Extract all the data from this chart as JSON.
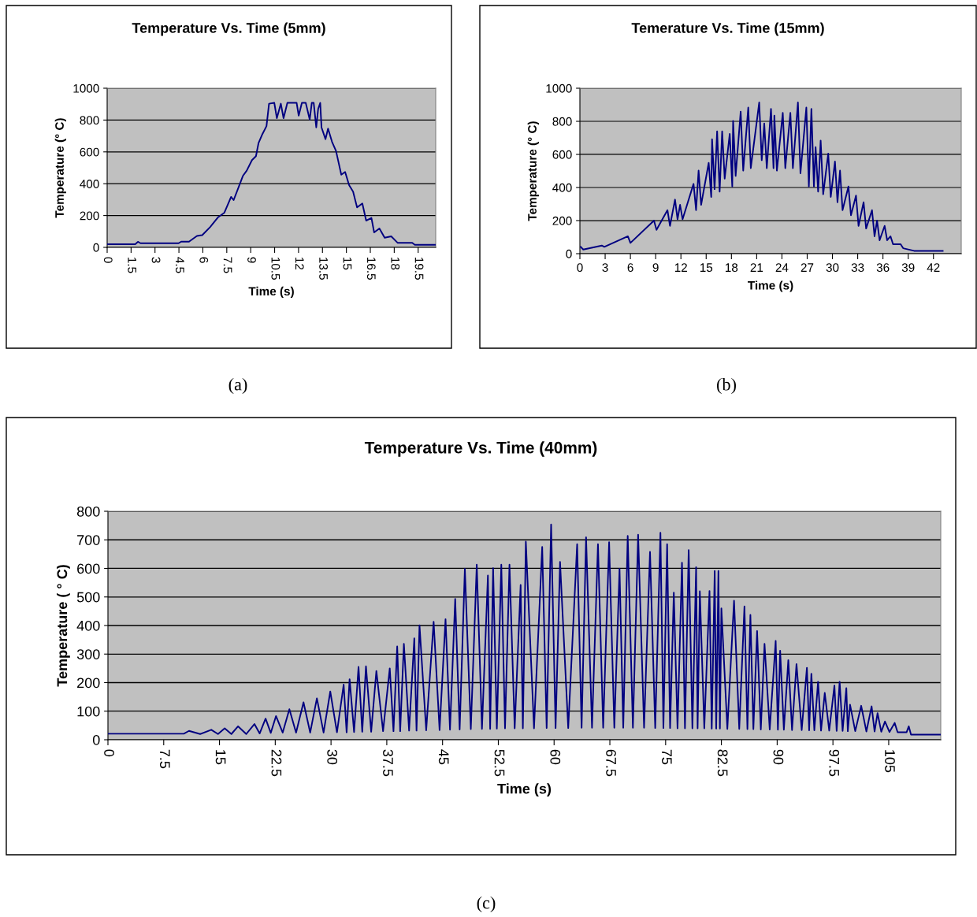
{
  "chart_data": [
    {
      "type": "line",
      "title": "Temperature Vs. Time (5mm)",
      "xlabel": "Time (s)",
      "ylabel": "Temperature (° C)",
      "xlim": [
        0,
        20.6
      ],
      "ylim": [
        0,
        1000
      ],
      "xticks": [
        0,
        1.5,
        3,
        4.5,
        6,
        7.5,
        9,
        10.5,
        12,
        13.5,
        15,
        16.5,
        18,
        19.5
      ],
      "yticks": [
        0,
        200,
        400,
        600,
        800,
        1000
      ],
      "grid": "y",
      "annotations": [
        "(a)"
      ],
      "series": [
        {
          "color": "#000080",
          "x": [
            0,
            1.76,
            1.93,
            2.09,
            4.48,
            4.64,
            5.13,
            5.63,
            5.96,
            6.45,
            6.94,
            7.35,
            7.77,
            7.93,
            8.26,
            8.51,
            8.75,
            9.08,
            9.33,
            9.49,
            9.74,
            9.99,
            10.15,
            10.48,
            10.64,
            10.89,
            11.06,
            11.3,
            11.88,
            12.01,
            12.21,
            12.45,
            12.7,
            12.83,
            12.95,
            13.11,
            13.23,
            13.36,
            13.44,
            13.69,
            13.85,
            14.1,
            14.35,
            14.68,
            14.92,
            15.17,
            15.42,
            15.67,
            16.0,
            16.24,
            16.57,
            16.74,
            17.07,
            17.4,
            17.81,
            18.22,
            19.13,
            19.29,
            20.6
          ],
          "values": [
            20,
            20,
            35,
            26,
            26,
            36,
            36,
            72,
            77,
            127,
            188,
            218,
            317,
            297,
            383,
            449,
            482,
            548,
            573,
            655,
            713,
            762,
            903,
            908,
            812,
            903,
            812,
            908,
            908,
            828,
            908,
            908,
            803,
            908,
            908,
            754,
            870,
            908,
            754,
            680,
            746,
            663,
            606,
            457,
            474,
            391,
            350,
            251,
            276,
            168,
            185,
            94,
            119,
            61,
            69,
            28,
            28,
            16,
            16
          ]
        }
      ]
    },
    {
      "type": "line",
      "title": "Temerature Vs. Time (15mm)",
      "xlabel": "Time (s)",
      "ylabel": "Temperature (° C)",
      "xlim": [
        0,
        45.3
      ],
      "ylim": [
        0,
        1000
      ],
      "xticks": [
        0,
        3,
        6,
        9,
        12,
        15,
        18,
        21,
        24,
        27,
        30,
        33,
        36,
        39,
        42
      ],
      "yticks": [
        0,
        200,
        400,
        600,
        800,
        1000
      ],
      "grid": "y",
      "annotations": [
        "(b)"
      ],
      "series": [
        {
          "color": "#000080",
          "x": [
            0.1,
            0.4,
            2.6,
            2.9,
            5.7,
            6.0,
            8.8,
            9.1,
            10.4,
            10.7,
            11.3,
            11.6,
            11.9,
            12.2,
            13.5,
            13.8,
            14.1,
            14.4,
            15.3,
            15.6,
            15.7,
            16.0,
            16.3,
            16.6,
            16.9,
            17.2,
            17.8,
            18.1,
            18.2,
            18.5,
            19.1,
            19.4,
            20.0,
            20.3,
            21.3,
            21.6,
            21.9,
            22.2,
            22.7,
            23.0,
            23.1,
            23.4,
            24.1,
            24.4,
            25.0,
            25.3,
            25.9,
            26.2,
            26.9,
            27.2,
            27.5,
            27.8,
            28.0,
            28.3,
            28.6,
            28.9,
            29.5,
            29.8,
            30.3,
            30.6,
            30.9,
            31.2,
            31.9,
            32.2,
            32.8,
            33.1,
            33.7,
            34.0,
            34.7,
            35.0,
            35.3,
            35.6,
            36.2,
            36.5,
            36.9,
            37.2,
            38.1,
            38.4,
            39.7,
            43.1
          ],
          "values": [
            41,
            25,
            49,
            41,
            105,
            65,
            200,
            144,
            263,
            168,
            327,
            208,
            295,
            208,
            422,
            263,
            502,
            295,
            549,
            343,
            692,
            390,
            740,
            375,
            740,
            454,
            724,
            406,
            803,
            470,
            859,
            502,
            883,
            517,
            914,
            565,
            787,
            517,
            875,
            517,
            835,
            502,
            851,
            517,
            851,
            517,
            914,
            486,
            883,
            406,
            875,
            406,
            644,
            375,
            684,
            359,
            605,
            343,
            557,
            311,
            502,
            263,
            406,
            232,
            351,
            168,
            311,
            152,
            263,
            105,
            200,
            81,
            168,
            81,
            105,
            57,
            57,
            33,
            17,
            17
          ]
        }
      ]
    },
    {
      "type": "line",
      "title": "Temperature Vs. Time (40mm)",
      "xlabel": "Time (s)",
      "ylabel": "Temperature ( ° C)",
      "xlim": [
        0,
        112
      ],
      "ylim": [
        0,
        800
      ],
      "xticks": [
        0,
        7.5,
        15,
        22.5,
        30,
        37.5,
        45,
        52.5,
        60,
        67.5,
        75,
        82.5,
        90,
        97.5,
        105
      ],
      "yticks": [
        0,
        100,
        200,
        300,
        400,
        500,
        600,
        700,
        800
      ],
      "grid": "y",
      "annotations": [
        "(c)"
      ],
      "series": [
        {
          "color": "#000080",
          "x": [
            0,
            10.2,
            10.9,
            12.4,
            13.9,
            14.8,
            15.7,
            16.6,
            17.5,
            18.6,
            19.7,
            20.4,
            21.2,
            21.9,
            22.6,
            23.5,
            24.4,
            25.3,
            26.3,
            27.2,
            28.1,
            29.0,
            29.9,
            30.8,
            31.7,
            32.1,
            32.5,
            33.1,
            33.7,
            34.2,
            34.7,
            35.4,
            36.1,
            37.0,
            37.9,
            38.4,
            38.9,
            39.3,
            39.8,
            40.5,
            41.2,
            41.5,
            41.9,
            42.8,
            43.8,
            44.6,
            45.4,
            46.0,
            46.7,
            47.3,
            48.0,
            48.8,
            49.6,
            50.3,
            51.1,
            51.4,
            51.8,
            52.3,
            52.9,
            53.4,
            54.0,
            54.7,
            55.5,
            55.8,
            56.2,
            57.3,
            58.4,
            59.0,
            59.6,
            60.2,
            60.8,
            61.9,
            63.1,
            63.7,
            64.3,
            65.1,
            65.9,
            66.6,
            67.4,
            68.1,
            68.8,
            69.3,
            69.9,
            70.6,
            71.3,
            72.1,
            72.9,
            73.6,
            74.3,
            74.7,
            75.2,
            75.6,
            76.1,
            76.6,
            77.2,
            77.6,
            78.1,
            78.6,
            79.1,
            79.3,
            79.6,
            80.2,
            80.9,
            81.2,
            81.6,
            81.8,
            82.1,
            82.3,
            82.5,
            83.3,
            84.2,
            84.9,
            85.6,
            86.0,
            86.4,
            86.8,
            87.3,
            87.8,
            88.3,
            89.0,
            89.8,
            90.1,
            90.4,
            90.9,
            91.5,
            92.0,
            92.6,
            93.3,
            94.0,
            94.3,
            94.6,
            95.0,
            95.5,
            95.9,
            96.4,
            97.0,
            97.7,
            98.0,
            98.4,
            98.8,
            99.3,
            99.5,
            99.8,
            100.5,
            101.3,
            102.0,
            102.7,
            103.1,
            103.5,
            104.0,
            104.5,
            105.1,
            105.8,
            106.2,
            107.4,
            107.7,
            108.0,
            111.9
          ],
          "values": [
            21,
            21,
            31,
            20,
            35,
            20,
            40,
            20,
            47,
            20,
            55,
            22,
            74,
            24,
            83,
            25,
            107,
            25,
            131,
            25,
            145,
            25,
            169,
            26,
            193,
            26,
            212,
            27,
            255,
            28,
            257,
            28,
            241,
            30,
            250,
            30,
            327,
            30,
            336,
            32,
            355,
            32,
            401,
            33,
            413,
            34,
            422,
            35,
            493,
            36,
            599,
            37,
            613,
            38,
            575,
            38,
            601,
            39,
            613,
            40,
            613,
            40,
            542,
            40,
            694,
            40,
            675,
            41,
            754,
            41,
            623,
            41,
            685,
            42,
            709,
            42,
            685,
            42,
            692,
            42,
            599,
            42,
            714,
            42,
            718,
            42,
            658,
            41,
            725,
            41,
            685,
            41,
            515,
            40,
            620,
            40,
            664,
            40,
            604,
            40,
            520,
            40,
            521,
            39,
            591,
            39,
            591,
            39,
            460,
            38,
            487,
            38,
            467,
            37,
            437,
            37,
            381,
            36,
            336,
            36,
            346,
            35,
            312,
            35,
            279,
            34,
            265,
            34,
            252,
            33,
            231,
            33,
            203,
            32,
            164,
            32,
            190,
            31,
            203,
            31,
            181,
            30,
            123,
            30,
            119,
            29,
            117,
            29,
            93,
            28,
            64,
            27,
            59,
            26,
            26,
            47,
            18,
            18
          ]
        }
      ]
    }
  ]
}
